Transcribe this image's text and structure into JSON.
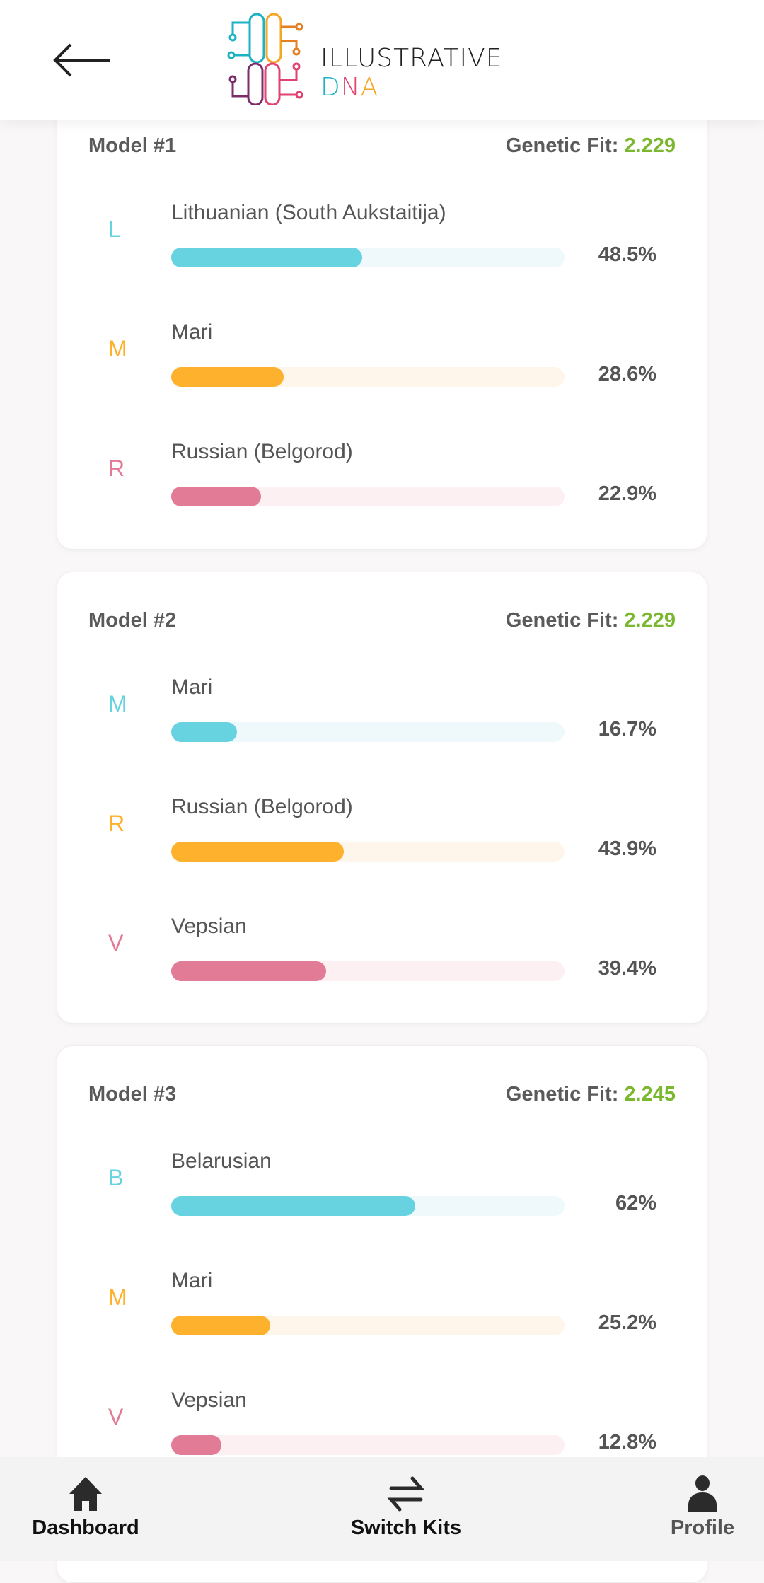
{
  "header": {
    "logo_text": "ILLUSTRATIVE",
    "logo_dna": [
      "D",
      "N",
      "A"
    ]
  },
  "colors": {
    "cyan": "#67d3e0",
    "cyan_track": "#eff8fb",
    "orange": "#fdb12c",
    "orange_track": "#fef6ea",
    "pink": "#e27b95",
    "pink_track": "#fcf0f2",
    "fit": "#7cb82f"
  },
  "models": [
    {
      "title": "Model #1",
      "fit_label": "Genetic Fit:",
      "fit_value": "2.229",
      "rows": [
        {
          "letter": "L",
          "name": "Lithuanian (South Aukstaitija)",
          "pct_label": "48.5%",
          "value": 48.5,
          "color": "cyan"
        },
        {
          "letter": "M",
          "name": "Mari",
          "pct_label": "28.6%",
          "value": 28.6,
          "color": "orange"
        },
        {
          "letter": "R",
          "name": "Russian (Belgorod)",
          "pct_label": "22.9%",
          "value": 22.9,
          "color": "pink"
        }
      ]
    },
    {
      "title": "Model #2",
      "fit_label": "Genetic Fit:",
      "fit_value": "2.229",
      "rows": [
        {
          "letter": "M",
          "name": "Mari",
          "pct_label": "16.7%",
          "value": 16.7,
          "color": "cyan"
        },
        {
          "letter": "R",
          "name": "Russian (Belgorod)",
          "pct_label": "43.9%",
          "value": 43.9,
          "color": "orange"
        },
        {
          "letter": "V",
          "name": "Vepsian",
          "pct_label": "39.4%",
          "value": 39.4,
          "color": "pink"
        }
      ]
    },
    {
      "title": "Model #3",
      "fit_label": "Genetic Fit:",
      "fit_value": "2.245",
      "rows": [
        {
          "letter": "B",
          "name": "Belarusian",
          "pct_label": "62%",
          "value": 62,
          "color": "cyan"
        },
        {
          "letter": "M",
          "name": "Mari",
          "pct_label": "25.2%",
          "value": 25.2,
          "color": "orange"
        },
        {
          "letter": "V",
          "name": "Vepsian",
          "pct_label": "12.8%",
          "value": 12.8,
          "color": "pink"
        }
      ]
    }
  ],
  "nav": {
    "dashboard": "Dashboard",
    "switch_kits": "Switch Kits",
    "profile": "Profile"
  }
}
